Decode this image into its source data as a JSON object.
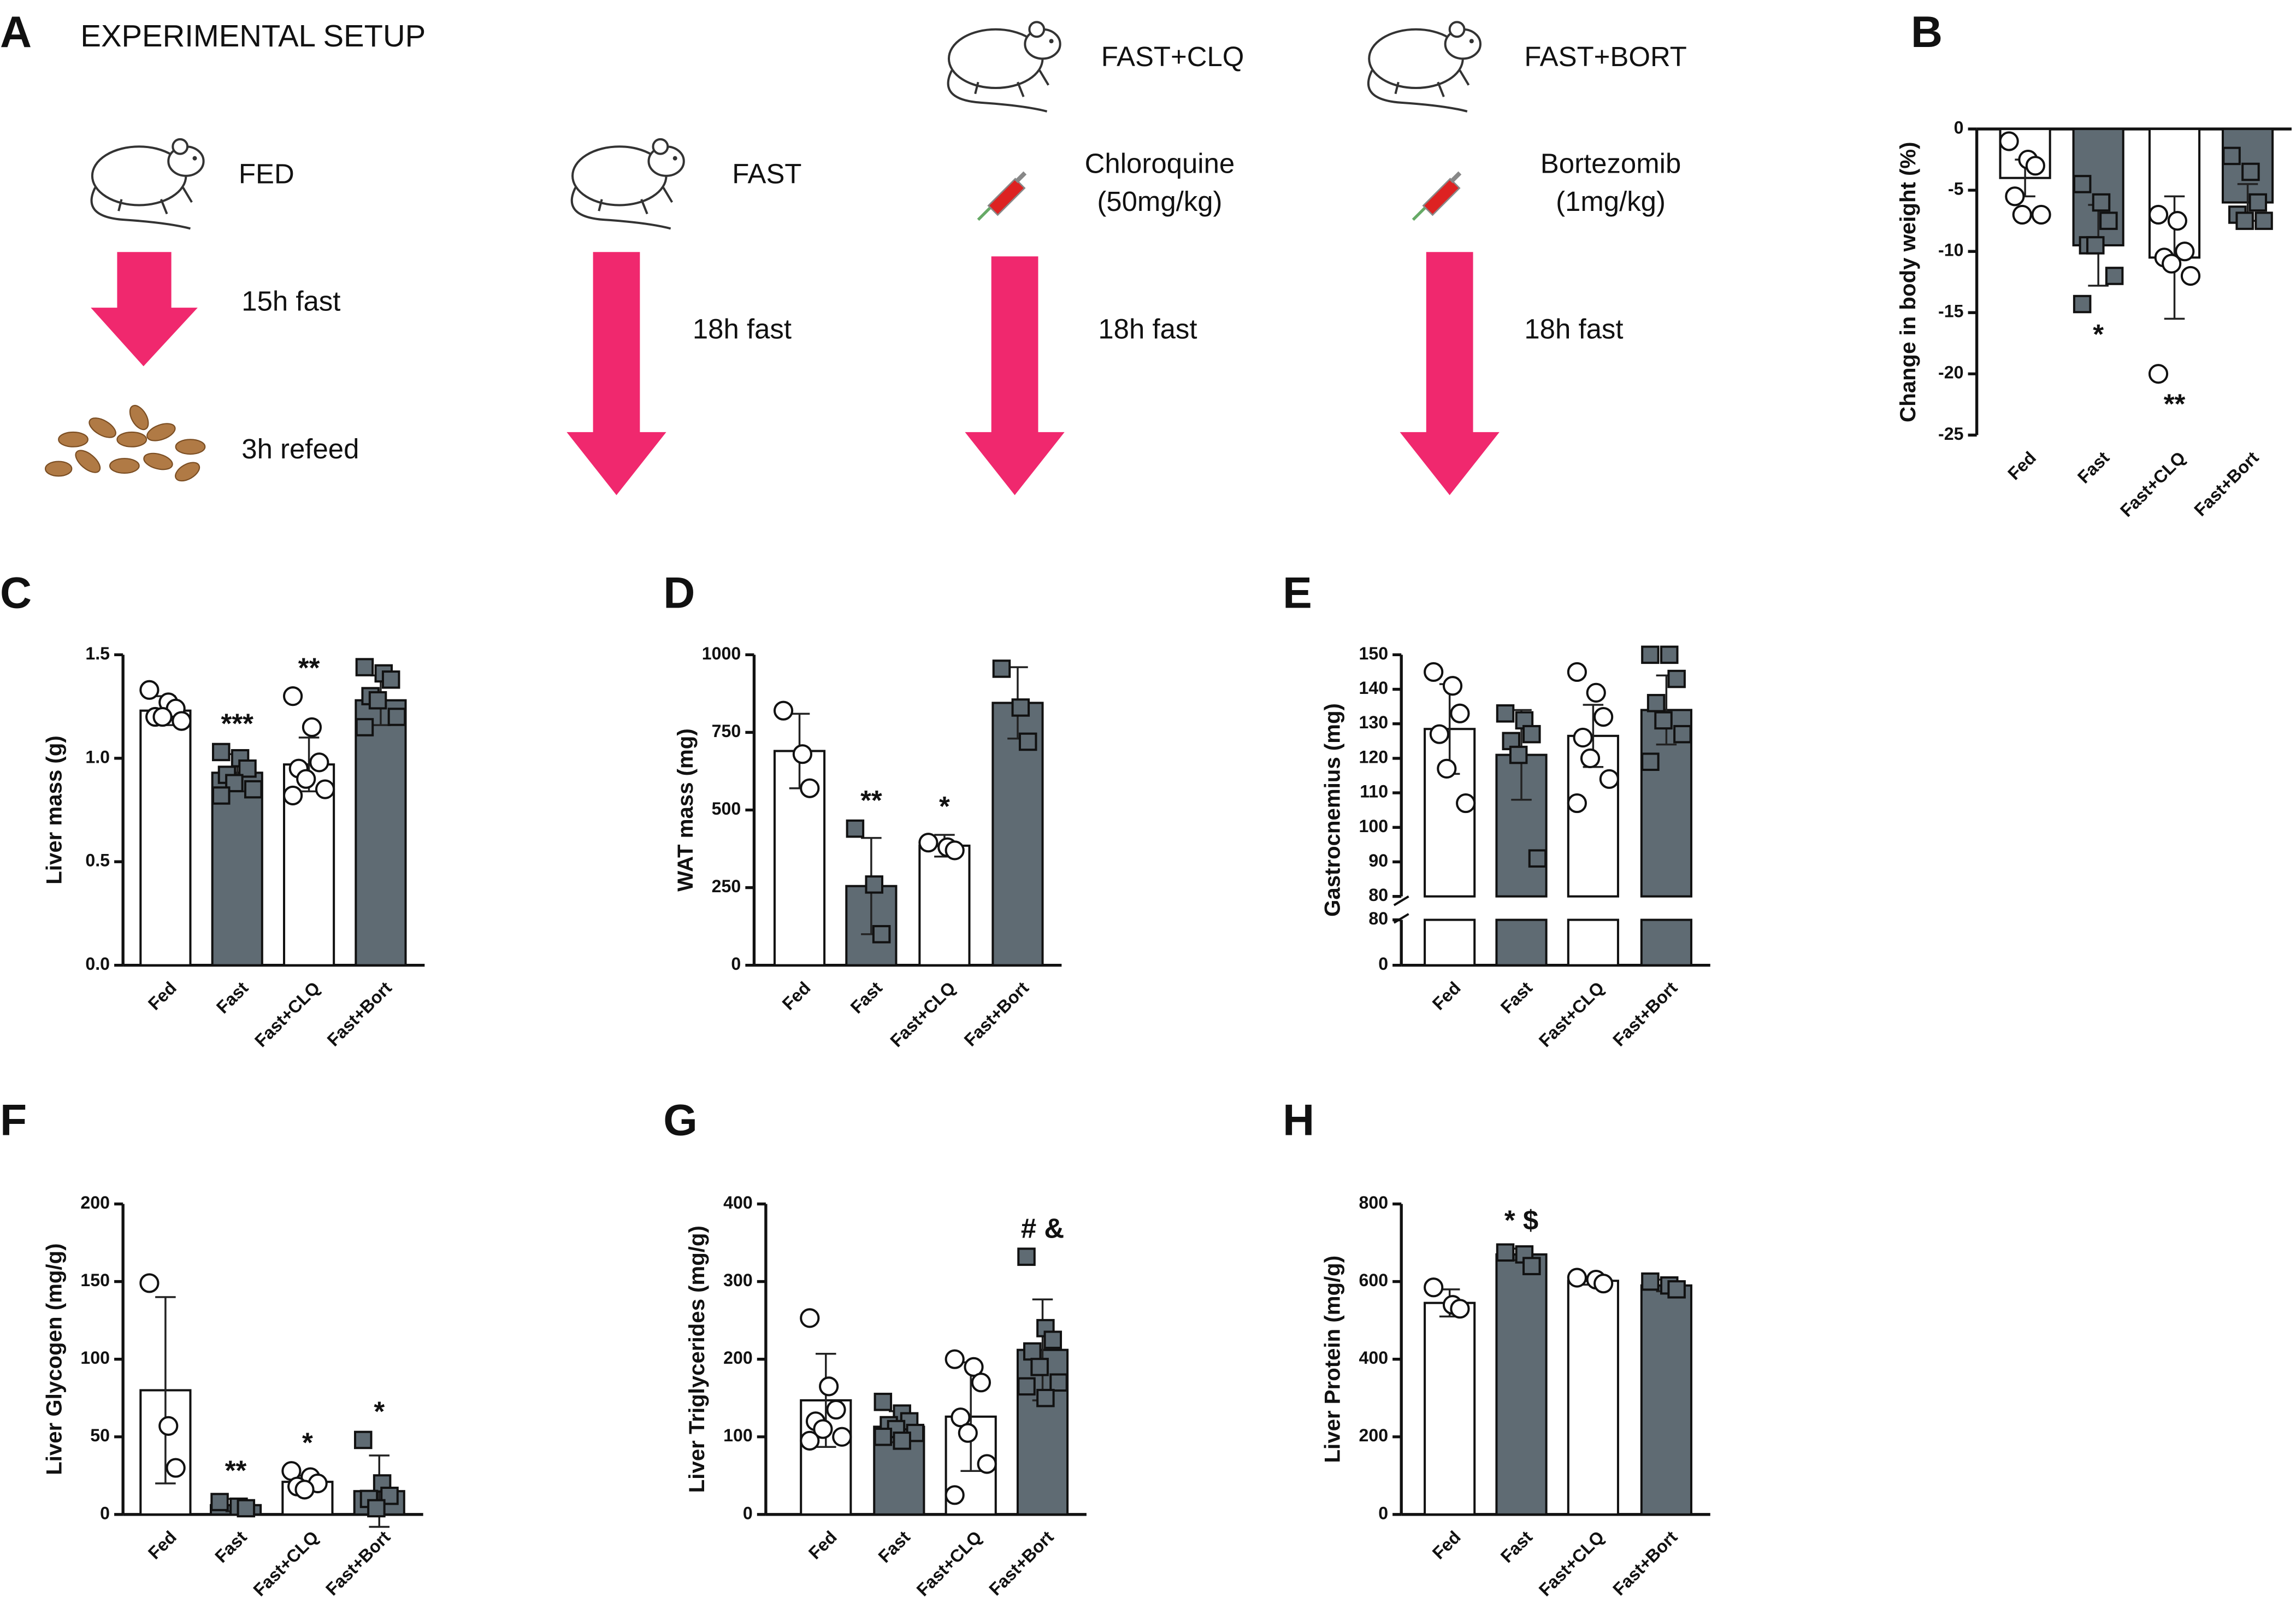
{
  "panel_a": {
    "letter": "A",
    "title": "EXPERIMENTAL SETUP",
    "fed": {
      "label": "FED",
      "fast": "15h fast",
      "refeed": "3h refeed"
    },
    "fast": {
      "label": "FAST",
      "fast": "18h fast"
    },
    "clq": {
      "label": "FAST+CLQ",
      "drug": "Chloroquine",
      "dose": "(50mg/kg)",
      "fast": "18h fast"
    },
    "bort": {
      "label": "FAST+BORT",
      "drug": "Bortezomib",
      "dose": "(1mg/kg)",
      "fast": "18h fast"
    }
  },
  "chart_data": [
    {
      "type": "bar",
      "panel": "B",
      "ylabel": "Change in body weight (%)",
      "categories": [
        "Fed",
        "Fast",
        "Fast+CLQ",
        "Fast+Bort"
      ],
      "colors": [
        "#ffffff",
        "#5f6b73",
        "#ffffff",
        "#5f6b73"
      ],
      "values": [
        -4,
        -9.5,
        -10.5,
        -6
      ],
      "errors": [
        1.5,
        3.3,
        5,
        1.5
      ],
      "points": [
        [
          -1,
          -2.5,
          -3,
          -5.5,
          -7,
          -7
        ],
        [
          -4.5,
          -6,
          -7.5,
          -9.5,
          -9.5,
          -12,
          -14.3
        ],
        [
          -7,
          -7.5,
          -10,
          -10.5,
          -11,
          -12,
          -20
        ],
        [
          -2.2,
          -3.5,
          -6,
          -7,
          -7.5,
          -7.5
        ]
      ],
      "annotations": [
        null,
        "*",
        "**",
        null
      ],
      "ylim": [
        -25,
        0
      ],
      "yticks": [
        0,
        -5,
        -10,
        -15,
        -20,
        -25
      ]
    },
    {
      "type": "bar",
      "panel": "C",
      "ylabel": "Liver mass (g)",
      "categories": [
        "Fed",
        "Fast",
        "Fast+CLQ",
        "Fast+Bort"
      ],
      "colors": [
        "#ffffff",
        "#5f6b73",
        "#ffffff",
        "#5f6b73"
      ],
      "values": [
        1.23,
        0.93,
        0.97,
        1.28
      ],
      "errors": [
        0.07,
        0.09,
        0.13,
        0.12
      ],
      "points": [
        [
          1.33,
          1.27,
          1.24,
          1.2,
          1.2,
          1.18
        ],
        [
          1.03,
          1.0,
          0.95,
          0.92,
          0.88,
          0.85,
          0.82
        ],
        [
          1.3,
          1.15,
          0.98,
          0.95,
          0.9,
          0.85,
          0.82
        ],
        [
          1.44,
          1.41,
          1.38,
          1.3,
          1.28,
          1.2,
          1.15
        ]
      ],
      "annotations": [
        null,
        "***",
        "**",
        null
      ],
      "ylim": [
        0,
        1.5
      ],
      "yticks": [
        {
          "value": 0,
          "label": "0.0"
        },
        0.5,
        {
          "value": 1,
          "label": "1.0"
        },
        1.5
      ]
    },
    {
      "type": "bar",
      "panel": "D",
      "ylabel": "WAT mass (mg)",
      "categories": [
        "Fed",
        "Fast",
        "Fast+CLQ",
        "Fast+Bort"
      ],
      "colors": [
        "#ffffff",
        "#5f6b73",
        "#ffffff",
        "#5f6b73"
      ],
      "values": [
        690,
        255,
        385,
        845
      ],
      "errors": [
        120,
        155,
        35,
        115
      ],
      "points": [
        [
          820,
          680,
          570
        ],
        [
          440,
          260,
          100
        ],
        [
          395,
          380,
          370
        ],
        [
          955,
          830,
          720
        ]
      ],
      "annotations": [
        null,
        "**",
        "*",
        null
      ],
      "ylim": [
        0,
        1000
      ],
      "yticks": [
        0,
        250,
        500,
        750,
        1000
      ]
    },
    {
      "type": "broken_bar",
      "panel": "E",
      "ylabel": "Gastrocnemius (mg)",
      "categories": [
        "Fed",
        "Fast",
        "Fast+CLQ",
        "Fast+Bort"
      ],
      "colors": [
        "#ffffff",
        "#5f6b73",
        "#ffffff",
        "#5f6b73"
      ],
      "values": [
        128.5,
        121,
        126.5,
        134
      ],
      "errors": [
        13,
        13,
        9,
        10
      ],
      "points": [
        [
          145,
          141,
          133,
          127,
          117,
          107
        ],
        [
          133,
          131,
          127,
          125,
          121,
          91
        ],
        [
          145,
          139,
          132,
          126,
          120,
          114,
          107
        ],
        [
          150,
          150,
          143,
          136,
          131,
          127,
          119
        ]
      ],
      "annotations": [
        null,
        null,
        null,
        null
      ],
      "ylim": [
        80,
        150
      ],
      "yticks": [
        80,
        90,
        100,
        110,
        120,
        130,
        140,
        150
      ],
      "lower_ylim": [
        0,
        80
      ],
      "lower_yticks": [
        0,
        80
      ]
    },
    {
      "type": "bar",
      "panel": "F",
      "ylabel": "Liver Glycogen (mg/g)",
      "categories": [
        "Fed",
        "Fast",
        "Fast+CLQ",
        "Fast+Bort"
      ],
      "colors": [
        "#ffffff",
        "#5f6b73",
        "#ffffff",
        "#5f6b73"
      ],
      "values": [
        80,
        6,
        21,
        15
      ],
      "errors": [
        60,
        4,
        4,
        23
      ],
      "points": [
        [
          149,
          57,
          30
        ],
        [
          8,
          5,
          4
        ],
        [
          28,
          24,
          20,
          18,
          16
        ],
        [
          48,
          20,
          12,
          10,
          4
        ]
      ],
      "annotations": [
        null,
        "**",
        "*",
        "*"
      ],
      "ylim": [
        0,
        200
      ],
      "yticks": [
        0,
        50,
        100,
        150,
        200
      ]
    },
    {
      "type": "bar",
      "panel": "G",
      "ylabel": "Liver Triglycerides (mg/g)",
      "categories": [
        "Fed",
        "Fast",
        "Fast+CLQ",
        "Fast+Bort"
      ],
      "colors": [
        "#ffffff",
        "#5f6b73",
        "#ffffff",
        "#5f6b73"
      ],
      "values": [
        147,
        113,
        126,
        212
      ],
      "errors": [
        60,
        20,
        70,
        65
      ],
      "points": [
        [
          253,
          165,
          135,
          120,
          110,
          100,
          95
        ],
        [
          145,
          130,
          120,
          115,
          110,
          105,
          100,
          95
        ],
        [
          200,
          190,
          170,
          125,
          105,
          65,
          25
        ],
        [
          332,
          240,
          225,
          210,
          190,
          170,
          165,
          150
        ]
      ],
      "annotations": [
        null,
        null,
        null,
        "# &"
      ],
      "ylim": [
        0,
        400
      ],
      "yticks": [
        0,
        100,
        200,
        300,
        400
      ]
    },
    {
      "type": "bar",
      "panel": "H",
      "ylabel": "Liver Protein (mg/g)",
      "categories": [
        "Fed",
        "Fast",
        "Fast+CLQ",
        "Fast+Bort"
      ],
      "colors": [
        "#ffffff",
        "#5f6b73",
        "#ffffff",
        "#5f6b73"
      ],
      "values": [
        545,
        670,
        602,
        590
      ],
      "errors": [
        35,
        15,
        10,
        15
      ],
      "points": [
        [
          585,
          540,
          530
        ],
        [
          675,
          670,
          640
        ],
        [
          610,
          605,
          595
        ],
        [
          600,
          590,
          580
        ]
      ],
      "annotations": [
        null,
        "* $",
        null,
        null
      ],
      "ylim": [
        0,
        800
      ],
      "yticks": [
        0,
        200,
        400,
        600,
        800
      ]
    }
  ]
}
